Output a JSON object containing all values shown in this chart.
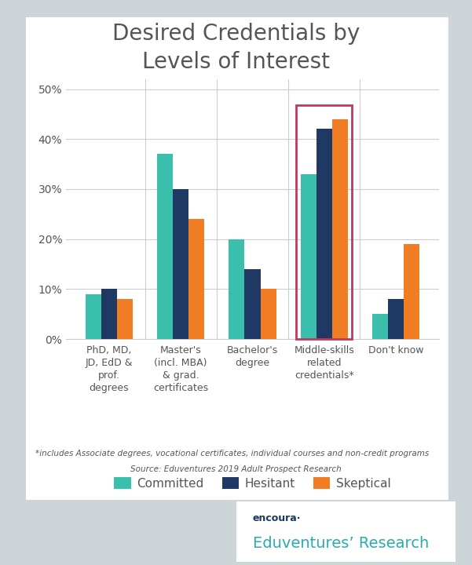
{
  "title": "Desired Credentials by\nLevels of Interest",
  "title_color": "#555555",
  "title_fontsize": 20,
  "background_outer": "#cdd5d9",
  "background_inner": "#ffffff",
  "categories": [
    "PhD, MD,\nJD, EdD &\nprof.\ndegrees",
    "Master's\n(incl. MBA)\n& grad.\ncertificates",
    "Bachelor's\ndegree",
    "Middle-skills\nrelated\ncredentials*",
    "Don't know"
  ],
  "series": {
    "Committed": {
      "values": [
        0.09,
        0.37,
        0.2,
        0.33,
        0.05
      ],
      "color": "#3bbfad"
    },
    "Hesitant": {
      "values": [
        0.1,
        0.3,
        0.14,
        0.42,
        0.08
      ],
      "color": "#1f3864"
    },
    "Skeptical": {
      "values": [
        0.08,
        0.24,
        0.1,
        0.44,
        0.19
      ],
      "color": "#f07d24"
    }
  },
  "highlight_category_index": 3,
  "highlight_box_color": "#c0395a",
  "ylim": [
    0,
    0.52
  ],
  "yticks": [
    0.0,
    0.1,
    0.2,
    0.3,
    0.4,
    0.5
  ],
  "ytick_labels": [
    "0%",
    "10%",
    "20%",
    "30%",
    "40%",
    "50%"
  ],
  "grid_color": "#cccccc",
  "bar_width": 0.22,
  "footnote": "*includes Associate degrees, vocational certificates, individual courses and non-credit programs",
  "source": "Source: Eduventures 2019 Adult Prospect Research",
  "footnote_fontsize": 7.5,
  "source_fontsize": 7.5,
  "logo_text1": "encoura·",
  "logo_text2": "Eduventures’ Research",
  "logo_color1": "#1a3a5c",
  "logo_color2": "#2aacaa",
  "axis_label_color": "#555555",
  "tick_label_color": "#555555"
}
